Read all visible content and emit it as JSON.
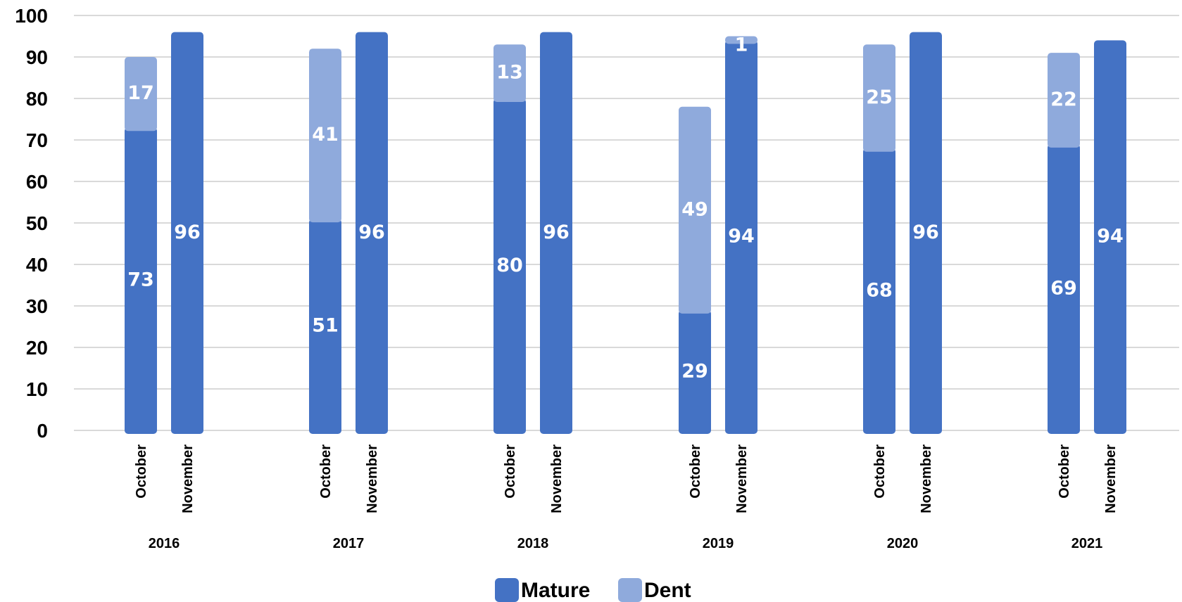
{
  "chart_data": {
    "type": "bar",
    "stacked": true,
    "title": "",
    "xlabel": "",
    "ylabel": "",
    "ylim": [
      0,
      100
    ],
    "yticks": [
      0,
      10,
      20,
      30,
      40,
      50,
      60,
      70,
      80,
      90,
      100
    ],
    "grid": true,
    "legend_position": "bottom",
    "groups": [
      {
        "year": "2016",
        "bars": [
          {
            "month": "October",
            "mature": 73,
            "dent": 17
          },
          {
            "month": "November",
            "mature": 96,
            "dent": 0
          }
        ]
      },
      {
        "year": "2017",
        "bars": [
          {
            "month": "October",
            "mature": 51,
            "dent": 41
          },
          {
            "month": "November",
            "mature": 96,
            "dent": 0
          }
        ]
      },
      {
        "year": "2018",
        "bars": [
          {
            "month": "October",
            "mature": 80,
            "dent": 13
          },
          {
            "month": "November",
            "mature": 96,
            "dent": 0
          }
        ]
      },
      {
        "year": "2019",
        "bars": [
          {
            "month": "October",
            "mature": 29,
            "dent": 49
          },
          {
            "month": "November",
            "mature": 94,
            "dent": 1
          }
        ]
      },
      {
        "year": "2020",
        "bars": [
          {
            "month": "October",
            "mature": 68,
            "dent": 25
          },
          {
            "month": "November",
            "mature": 96,
            "dent": 0
          }
        ]
      },
      {
        "year": "2021",
        "bars": [
          {
            "month": "October",
            "mature": 69,
            "dent": 22
          },
          {
            "month": "November",
            "mature": 94,
            "dent": 0
          }
        ]
      }
    ],
    "series": [
      {
        "name": "Mature",
        "key": "mature",
        "color": "#4472C4"
      },
      {
        "name": "Dent",
        "key": "dent",
        "color": "#8FAADC"
      }
    ]
  }
}
